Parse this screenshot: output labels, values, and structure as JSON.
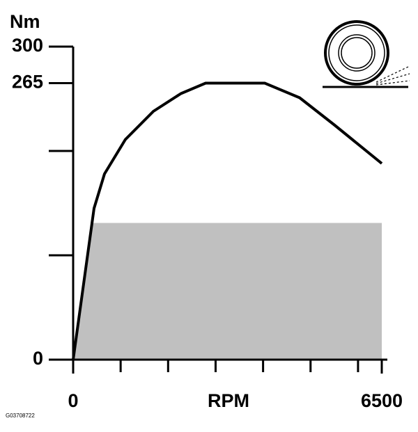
{
  "chart_data": {
    "type": "line",
    "y_label": "Nm",
    "x_label": "RPM",
    "figure_code": "G03708722",
    "x": [
      0,
      440,
      660,
      1100,
      1690,
      2270,
      2790,
      4035,
      4770,
      5500,
      6500
    ],
    "values": [
      0,
      145,
      178,
      211,
      238,
      255,
      265,
      265,
      251,
      225,
      188
    ],
    "color": "#000000",
    "shaded_area": {
      "x": [
        0,
        410,
        6500,
        6500
      ],
      "values": [
        0,
        131,
        131,
        0
      ],
      "color": "#c0c0c0"
    },
    "xlim": [
      0,
      6500
    ],
    "xticks": [
      0,
      6500
    ],
    "xminor_ticks": [
      1000,
      2000,
      3000,
      4000,
      5000,
      6000
    ],
    "ylim": [
      0,
      300
    ],
    "yticks": [
      0,
      265,
      300
    ],
    "yminor_ticks": [
      100,
      200
    ]
  }
}
